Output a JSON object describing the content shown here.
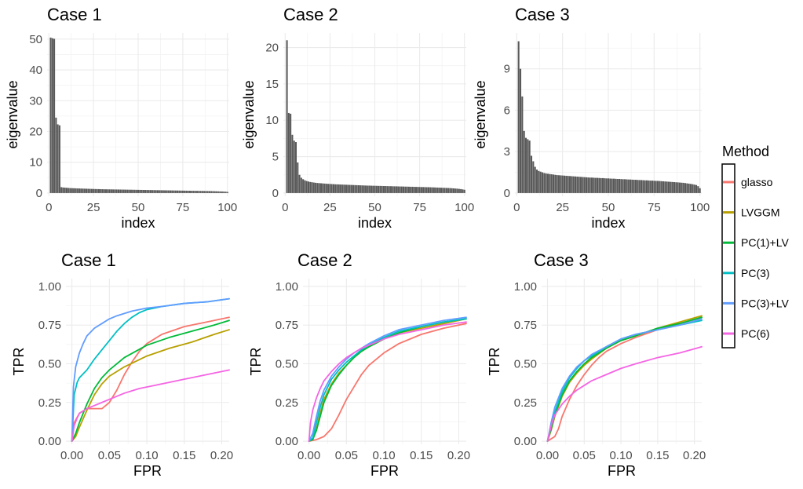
{
  "legend": {
    "title": "Method",
    "items": [
      {
        "label": "glasso",
        "color": "#F8766D"
      },
      {
        "label": "LVGGM",
        "color": "#B79F00"
      },
      {
        "label": "PC(1)+LV",
        "color": "#00BA38"
      },
      {
        "label": "PC(3)",
        "color": "#00BFC4"
      },
      {
        "label": "PC(3)+LV",
        "color": "#619CFF"
      },
      {
        "label": "PC(6)",
        "color": "#F564E3"
      }
    ]
  },
  "chart_data": [
    {
      "type": "bar",
      "title": "Case 1",
      "xlabel": "index",
      "ylabel": "eigenvalue",
      "xlim": [
        0,
        100
      ],
      "ylim": [
        0,
        52
      ],
      "xticks": [
        0,
        25,
        50,
        75,
        100
      ],
      "yticks": [
        0,
        10,
        20,
        30,
        40,
        50
      ],
      "values": [
        50.5,
        50.3,
        50.1,
        24.5,
        22.3,
        22.0,
        1.9,
        1.8,
        1.75,
        1.7,
        1.65,
        1.6,
        1.58,
        1.55,
        1.53,
        1.5,
        1.48,
        1.46,
        1.44,
        1.42,
        1.4,
        1.38,
        1.36,
        1.34,
        1.32,
        1.3,
        1.28,
        1.27,
        1.25,
        1.24,
        1.22,
        1.21,
        1.2,
        1.19,
        1.18,
        1.17,
        1.16,
        1.15,
        1.14,
        1.13,
        1.12,
        1.11,
        1.1,
        1.09,
        1.08,
        1.07,
        1.06,
        1.05,
        1.04,
        1.03,
        1.02,
        1.01,
        1.0,
        0.99,
        0.98,
        0.97,
        0.96,
        0.95,
        0.94,
        0.93,
        0.92,
        0.91,
        0.9,
        0.89,
        0.88,
        0.87,
        0.86,
        0.85,
        0.84,
        0.83,
        0.82,
        0.81,
        0.8,
        0.79,
        0.78,
        0.77,
        0.76,
        0.75,
        0.74,
        0.73,
        0.72,
        0.71,
        0.7,
        0.69,
        0.68,
        0.67,
        0.66,
        0.65,
        0.64,
        0.63,
        0.62,
        0.6,
        0.58,
        0.56,
        0.54,
        0.52,
        0.5,
        0.47,
        0.43,
        0.38
      ]
    },
    {
      "type": "bar",
      "title": "Case 2",
      "xlabel": "index",
      "ylabel": "eigenvalue",
      "xlim": [
        0,
        100
      ],
      "ylim": [
        0,
        22
      ],
      "xticks": [
        0,
        25,
        50,
        75,
        100
      ],
      "yticks": [
        0,
        5,
        10,
        15,
        20
      ],
      "values": [
        21.0,
        11.0,
        10.9,
        8.0,
        7.2,
        7.0,
        4.2,
        2.5,
        2.1,
        1.9,
        1.75,
        1.65,
        1.58,
        1.52,
        1.48,
        1.44,
        1.41,
        1.38,
        1.36,
        1.34,
        1.32,
        1.3,
        1.28,
        1.26,
        1.25,
        1.23,
        1.22,
        1.2,
        1.19,
        1.18,
        1.17,
        1.16,
        1.15,
        1.14,
        1.13,
        1.12,
        1.11,
        1.1,
        1.09,
        1.08,
        1.07,
        1.06,
        1.05,
        1.04,
        1.03,
        1.02,
        1.02,
        1.01,
        1.0,
        1.0,
        0.99,
        0.98,
        0.98,
        0.97,
        0.96,
        0.96,
        0.95,
        0.94,
        0.94,
        0.93,
        0.92,
        0.92,
        0.91,
        0.9,
        0.9,
        0.89,
        0.88,
        0.88,
        0.87,
        0.86,
        0.86,
        0.85,
        0.84,
        0.84,
        0.83,
        0.82,
        0.82,
        0.81,
        0.8,
        0.8,
        0.79,
        0.78,
        0.77,
        0.76,
        0.75,
        0.74,
        0.73,
        0.72,
        0.71,
        0.7,
        0.69,
        0.68,
        0.66,
        0.64,
        0.62,
        0.6,
        0.57,
        0.54,
        0.5,
        0.45
      ]
    },
    {
      "type": "bar",
      "title": "Case 3",
      "xlabel": "index",
      "ylabel": "eigenvalue",
      "xlim": [
        0,
        100
      ],
      "ylim": [
        0,
        11.6
      ],
      "xticks": [
        0,
        25,
        50,
        75,
        100
      ],
      "yticks": [
        0,
        3,
        6,
        9
      ],
      "values": [
        11.0,
        9.0,
        7.0,
        4.5,
        4.0,
        3.9,
        3.8,
        2.7,
        2.3,
        1.9,
        1.7,
        1.6,
        1.55,
        1.5,
        1.45,
        1.42,
        1.4,
        1.38,
        1.36,
        1.34,
        1.32,
        1.3,
        1.29,
        1.28,
        1.27,
        1.26,
        1.25,
        1.24,
        1.23,
        1.22,
        1.21,
        1.2,
        1.19,
        1.18,
        1.17,
        1.16,
        1.15,
        1.14,
        1.13,
        1.12,
        1.12,
        1.11,
        1.1,
        1.1,
        1.09,
        1.08,
        1.08,
        1.07,
        1.06,
        1.06,
        1.05,
        1.04,
        1.04,
        1.03,
        1.02,
        1.02,
        1.01,
        1.0,
        1.0,
        0.99,
        0.98,
        0.98,
        0.97,
        0.96,
        0.96,
        0.95,
        0.94,
        0.94,
        0.93,
        0.92,
        0.92,
        0.91,
        0.9,
        0.9,
        0.89,
        0.88,
        0.88,
        0.87,
        0.86,
        0.85,
        0.84,
        0.83,
        0.82,
        0.81,
        0.8,
        0.79,
        0.78,
        0.77,
        0.76,
        0.75,
        0.74,
        0.72,
        0.7,
        0.68,
        0.66,
        0.64,
        0.61,
        0.58,
        0.5,
        0.35
      ]
    },
    {
      "type": "line",
      "title": "Case 1",
      "xlabel": "FPR",
      "ylabel": "TPR",
      "xlim": [
        -0.008,
        0.21
      ],
      "ylim": [
        -0.02,
        1.05
      ],
      "xticks": [
        "0.00",
        "0.05",
        "0.10",
        "0.15",
        "0.20"
      ],
      "yticks": [
        "0.00",
        "0.25",
        "0.50",
        "0.75",
        "1.00"
      ],
      "series": [
        {
          "name": "glasso",
          "x": [
            0,
            0.003,
            0.01,
            0.02,
            0.03,
            0.04,
            0.05,
            0.06,
            0.07,
            0.08,
            0.09,
            0.1,
            0.12,
            0.15,
            0.18,
            0.21
          ],
          "y": [
            0,
            0.12,
            0.18,
            0.21,
            0.21,
            0.21,
            0.25,
            0.33,
            0.43,
            0.51,
            0.58,
            0.63,
            0.69,
            0.74,
            0.77,
            0.8
          ]
        },
        {
          "name": "LVGGM",
          "x": [
            0,
            0.005,
            0.01,
            0.02,
            0.03,
            0.04,
            0.05,
            0.07,
            0.1,
            0.13,
            0.16,
            0.19,
            0.21
          ],
          "y": [
            0,
            0.03,
            0.09,
            0.2,
            0.3,
            0.37,
            0.42,
            0.48,
            0.55,
            0.6,
            0.64,
            0.69,
            0.72
          ]
        },
        {
          "name": "PC(1)+LV",
          "x": [
            0,
            0.005,
            0.01,
            0.02,
            0.03,
            0.04,
            0.05,
            0.07,
            0.1,
            0.13,
            0.16,
            0.19,
            0.21
          ],
          "y": [
            0,
            0.05,
            0.12,
            0.24,
            0.34,
            0.41,
            0.46,
            0.54,
            0.62,
            0.67,
            0.71,
            0.75,
            0.78
          ]
        },
        {
          "name": "PC(3)",
          "x": [
            0,
            0.003,
            0.007,
            0.01,
            0.02,
            0.03,
            0.04,
            0.05,
            0.06,
            0.07,
            0.08,
            0.09,
            0.1,
            0.12,
            0.15,
            0.18,
            0.21
          ],
          "y": [
            0,
            0.3,
            0.38,
            0.41,
            0.46,
            0.53,
            0.59,
            0.65,
            0.71,
            0.76,
            0.8,
            0.83,
            0.85,
            0.87,
            0.89,
            0.9,
            0.92
          ]
        },
        {
          "name": "PC(3)+LV",
          "x": [
            0,
            0.002,
            0.005,
            0.01,
            0.015,
            0.02,
            0.03,
            0.04,
            0.05,
            0.06,
            0.08,
            0.1,
            0.12,
            0.15,
            0.18,
            0.21
          ],
          "y": [
            0,
            0.35,
            0.48,
            0.57,
            0.63,
            0.68,
            0.73,
            0.76,
            0.79,
            0.81,
            0.84,
            0.86,
            0.87,
            0.89,
            0.9,
            0.92
          ]
        },
        {
          "name": "PC(6)",
          "x": [
            0,
            0.003,
            0.007,
            0.01,
            0.02,
            0.03,
            0.04,
            0.05,
            0.07,
            0.09,
            0.11,
            0.13,
            0.15,
            0.18,
            0.21
          ],
          "y": [
            0,
            0.1,
            0.15,
            0.18,
            0.21,
            0.23,
            0.25,
            0.27,
            0.31,
            0.34,
            0.36,
            0.38,
            0.4,
            0.43,
            0.46
          ]
        }
      ]
    },
    {
      "type": "line",
      "title": "Case 2",
      "xlabel": "FPR",
      "ylabel": "TPR",
      "xlim": [
        -0.008,
        0.21
      ],
      "ylim": [
        -0.02,
        1.05
      ],
      "xticks": [
        "0.00",
        "0.05",
        "0.10",
        "0.15",
        "0.20"
      ],
      "yticks": [
        "0.00",
        "0.25",
        "0.50",
        "0.75",
        "1.00"
      ],
      "series": [
        {
          "name": "glasso",
          "x": [
            0,
            0.01,
            0.02,
            0.03,
            0.04,
            0.05,
            0.06,
            0.07,
            0.08,
            0.1,
            0.12,
            0.15,
            0.18,
            0.21
          ],
          "y": [
            0,
            0.01,
            0.03,
            0.08,
            0.17,
            0.27,
            0.35,
            0.43,
            0.49,
            0.57,
            0.63,
            0.69,
            0.73,
            0.76
          ]
        },
        {
          "name": "LVGGM",
          "x": [
            0,
            0.005,
            0.01,
            0.015,
            0.02,
            0.03,
            0.04,
            0.05,
            0.06,
            0.07,
            0.08,
            0.1,
            0.12,
            0.15,
            0.18,
            0.21
          ],
          "y": [
            0,
            0.01,
            0.08,
            0.18,
            0.27,
            0.37,
            0.44,
            0.49,
            0.54,
            0.58,
            0.61,
            0.66,
            0.7,
            0.73,
            0.76,
            0.79
          ]
        },
        {
          "name": "PC(1)+LV",
          "x": [
            0,
            0.005,
            0.01,
            0.015,
            0.02,
            0.03,
            0.04,
            0.05,
            0.06,
            0.07,
            0.08,
            0.1,
            0.12,
            0.15,
            0.18,
            0.21
          ],
          "y": [
            0,
            0.01,
            0.07,
            0.16,
            0.25,
            0.36,
            0.43,
            0.49,
            0.54,
            0.58,
            0.61,
            0.66,
            0.7,
            0.74,
            0.77,
            0.79
          ]
        },
        {
          "name": "PC(3)",
          "x": [
            0,
            0.005,
            0.01,
            0.015,
            0.02,
            0.03,
            0.04,
            0.05,
            0.06,
            0.07,
            0.08,
            0.1,
            0.12,
            0.15,
            0.18,
            0.21
          ],
          "y": [
            0,
            0.02,
            0.12,
            0.22,
            0.3,
            0.4,
            0.46,
            0.51,
            0.55,
            0.59,
            0.62,
            0.67,
            0.71,
            0.74,
            0.77,
            0.79
          ]
        },
        {
          "name": "PC(3)+LV",
          "x": [
            0,
            0.005,
            0.01,
            0.015,
            0.02,
            0.03,
            0.04,
            0.05,
            0.06,
            0.07,
            0.08,
            0.1,
            0.12,
            0.15,
            0.18,
            0.21
          ],
          "y": [
            0,
            0.05,
            0.16,
            0.26,
            0.33,
            0.42,
            0.48,
            0.53,
            0.57,
            0.6,
            0.63,
            0.68,
            0.72,
            0.75,
            0.78,
            0.8
          ]
        },
        {
          "name": "PC(6)",
          "x": [
            0,
            0.002,
            0.005,
            0.01,
            0.015,
            0.02,
            0.03,
            0.04,
            0.05,
            0.06,
            0.07,
            0.08,
            0.1,
            0.12,
            0.15,
            0.18,
            0.21
          ],
          "y": [
            0,
            0.12,
            0.2,
            0.28,
            0.34,
            0.39,
            0.45,
            0.5,
            0.54,
            0.57,
            0.6,
            0.62,
            0.66,
            0.69,
            0.72,
            0.75,
            0.77
          ]
        }
      ]
    },
    {
      "type": "line",
      "title": "Case 3",
      "xlabel": "FPR",
      "ylabel": "TPR",
      "xlim": [
        -0.008,
        0.21
      ],
      "ylim": [
        -0.02,
        1.05
      ],
      "xticks": [
        "0.00",
        "0.05",
        "0.10",
        "0.15",
        "0.20"
      ],
      "yticks": [
        "0.00",
        "0.25",
        "0.50",
        "0.75",
        "1.00"
      ],
      "series": [
        {
          "name": "glasso",
          "x": [
            0,
            0.01,
            0.015,
            0.02,
            0.03,
            0.04,
            0.05,
            0.06,
            0.07,
            0.08,
            0.1,
            0.12,
            0.15,
            0.18,
            0.21
          ],
          "y": [
            0,
            0.03,
            0.08,
            0.16,
            0.27,
            0.36,
            0.43,
            0.49,
            0.54,
            0.58,
            0.63,
            0.67,
            0.72,
            0.76,
            0.8
          ]
        },
        {
          "name": "LVGGM",
          "x": [
            0,
            0.005,
            0.01,
            0.02,
            0.03,
            0.04,
            0.05,
            0.06,
            0.08,
            0.1,
            0.12,
            0.15,
            0.18,
            0.21
          ],
          "y": [
            0,
            0.07,
            0.16,
            0.29,
            0.38,
            0.44,
            0.49,
            0.53,
            0.6,
            0.65,
            0.68,
            0.73,
            0.77,
            0.81
          ]
        },
        {
          "name": "PC(1)+LV",
          "x": [
            0,
            0.005,
            0.01,
            0.02,
            0.03,
            0.04,
            0.05,
            0.06,
            0.08,
            0.1,
            0.12,
            0.15,
            0.18,
            0.21
          ],
          "y": [
            0,
            0.08,
            0.17,
            0.3,
            0.39,
            0.45,
            0.5,
            0.54,
            0.6,
            0.65,
            0.68,
            0.73,
            0.76,
            0.8
          ]
        },
        {
          "name": "PC(3)",
          "x": [
            0,
            0.005,
            0.01,
            0.02,
            0.03,
            0.04,
            0.05,
            0.06,
            0.08,
            0.1,
            0.12,
            0.15,
            0.18,
            0.21
          ],
          "y": [
            0,
            0.1,
            0.19,
            0.32,
            0.41,
            0.47,
            0.52,
            0.55,
            0.61,
            0.66,
            0.69,
            0.72,
            0.75,
            0.78
          ]
        },
        {
          "name": "PC(3)+LV",
          "x": [
            0,
            0.005,
            0.01,
            0.02,
            0.03,
            0.04,
            0.05,
            0.06,
            0.08,
            0.1,
            0.12,
            0.15,
            0.18,
            0.21
          ],
          "y": [
            0,
            0.12,
            0.22,
            0.34,
            0.42,
            0.48,
            0.52,
            0.56,
            0.61,
            0.66,
            0.69,
            0.72,
            0.75,
            0.79
          ]
        },
        {
          "name": "PC(6)",
          "x": [
            0,
            0.005,
            0.01,
            0.02,
            0.03,
            0.04,
            0.05,
            0.06,
            0.08,
            0.1,
            0.12,
            0.15,
            0.18,
            0.21
          ],
          "y": [
            0,
            0.1,
            0.17,
            0.24,
            0.29,
            0.33,
            0.36,
            0.39,
            0.43,
            0.47,
            0.5,
            0.54,
            0.57,
            0.61
          ]
        }
      ]
    }
  ]
}
